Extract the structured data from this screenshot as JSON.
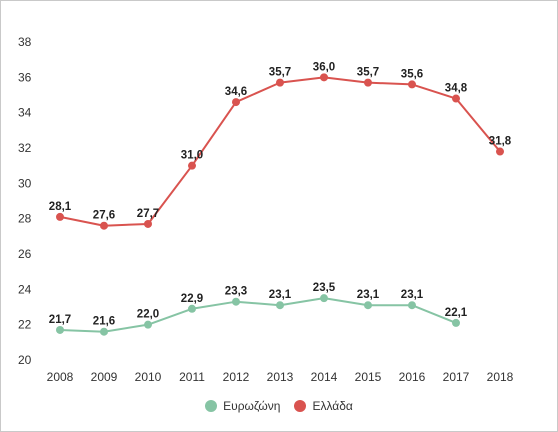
{
  "chart_data": {
    "type": "line",
    "title": "",
    "xlabel": "",
    "ylabel": "",
    "x": [
      "2008",
      "2009",
      "2010",
      "2011",
      "2012",
      "2013",
      "2014",
      "2015",
      "2016",
      "2017",
      "2018"
    ],
    "ylim": [
      20,
      38
    ],
    "yticks": [
      "20",
      "22",
      "24",
      "26",
      "28",
      "30",
      "32",
      "34",
      "36",
      "38"
    ],
    "grid": false,
    "legend_position": "bottom",
    "series": [
      {
        "name": "Ελλάδα",
        "color": "#d9534f",
        "values": [
          28.1,
          27.6,
          27.7,
          31.0,
          34.6,
          35.7,
          36.0,
          35.7,
          35.6,
          34.8,
          31.8
        ],
        "labels": [
          "28,1",
          "27,6",
          "27,7",
          "31,0",
          "34,6",
          "35,7",
          "36,0",
          "35,7",
          "35,6",
          "34,8",
          "31,8"
        ]
      },
      {
        "name": "Ευρωζώνη",
        "color": "#86c4a4",
        "values": [
          21.7,
          21.6,
          22.0,
          22.9,
          23.3,
          23.1,
          23.5,
          23.1,
          23.1,
          22.1,
          null
        ],
        "labels": [
          "21,7",
          "21,6",
          "22,0",
          "22,9",
          "23,3",
          "23,1",
          "23,5",
          "23,1",
          "23,1",
          "22,1",
          ""
        ]
      }
    ]
  },
  "legend": {
    "items": [
      {
        "label": "Ευρωζώνη",
        "color": "#86c4a4"
      },
      {
        "label": "Ελλάδα",
        "color": "#d9534f"
      }
    ]
  }
}
